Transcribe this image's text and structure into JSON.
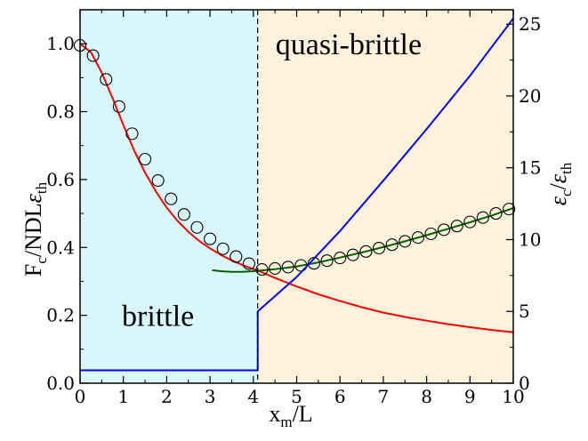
{
  "chart_data": {
    "type": "line",
    "xlabel_base": "x",
    "xlabel_sub": "m",
    "xlabel_tail": "/L",
    "ylabel_main": "F",
    "ylabel_main_sub": "c",
    "ylabel_main_mid": "/NDL",
    "ylabel_main_eps": "ε",
    "ylabel_main_eps_sub": "th",
    "ylabel_right_eps": "ε",
    "ylabel_right_sub": "c",
    "ylabel_right_mid": "/",
    "ylabel_right_eps2": "ε",
    "ylabel_right_sub2": "th",
    "xlim": [
      0,
      10
    ],
    "ylim_left": [
      0,
      1.1
    ],
    "ylim_right": [
      0,
      26
    ],
    "xticks": [
      0,
      1,
      2,
      3,
      4,
      5,
      6,
      7,
      8,
      9,
      10
    ],
    "xtick_labels": [
      "0",
      "1",
      "2",
      "3",
      "4",
      "5",
      "6",
      "7",
      "8",
      "9",
      "10"
    ],
    "yticks_left": [
      0,
      0.2,
      0.4,
      0.6,
      0.8,
      1.0
    ],
    "ytick_labels_left": [
      "0.0",
      "0.2",
      "0.4",
      "0.6",
      "0.8",
      "1.0"
    ],
    "yticks_right": [
      0,
      5,
      10,
      15,
      20,
      25
    ],
    "ytick_labels_right": [
      "0",
      "5",
      "10",
      "15",
      "20",
      "25"
    ],
    "grid": false,
    "regions": [
      {
        "label": "brittle",
        "x_from": 0,
        "x_to": 4.1,
        "color": "#d9f8fb",
        "label_x": 1.8,
        "label_y": 0.2
      },
      {
        "label": "quasi-brittle",
        "x_from": 4.1,
        "x_to": 10,
        "color": "#fdf3dc",
        "label_x": 6.2,
        "label_y": 1.0
      }
    ],
    "divider_x": 4.1,
    "series": [
      {
        "axis": "left",
        "color": "#ff0000",
        "style": "line",
        "x": [
          0,
          0.25,
          0.5,
          0.75,
          1,
          1.25,
          1.5,
          1.75,
          2,
          2.25,
          2.5,
          2.75,
          3,
          3.25,
          3.5,
          3.75,
          4,
          4.1,
          4.5,
          5,
          5.5,
          6,
          6.5,
          7,
          7.5,
          8,
          8.5,
          9,
          9.5,
          10
        ],
        "y": [
          1.0,
          0.975,
          0.915,
          0.84,
          0.76,
          0.685,
          0.62,
          0.565,
          0.517,
          0.478,
          0.446,
          0.419,
          0.397,
          0.378,
          0.362,
          0.348,
          0.336,
          0.332,
          0.31,
          0.285,
          0.262,
          0.242,
          0.224,
          0.208,
          0.195,
          0.184,
          0.174,
          0.165,
          0.157,
          0.15
        ]
      },
      {
        "axis": "left",
        "color": "#006400",
        "style": "line",
        "x": [
          3.05,
          3.25,
          3.5,
          3.75,
          4.0,
          4.1,
          4.5,
          5,
          5.5,
          6,
          6.5,
          7,
          7.5,
          8,
          8.5,
          9,
          9.5,
          10
        ],
        "y": [
          0.333,
          0.33,
          0.328,
          0.328,
          0.33,
          0.331,
          0.336,
          0.344,
          0.356,
          0.37,
          0.385,
          0.401,
          0.418,
          0.436,
          0.455,
          0.474,
          0.494,
          0.516
        ]
      },
      {
        "axis": "left",
        "color": "#000000",
        "style": "markers",
        "x": [
          0,
          0.3,
          0.6,
          0.9,
          1.2,
          1.5,
          1.8,
          2.1,
          2.4,
          2.7,
          3.0,
          3.3,
          3.6,
          3.9,
          4.2,
          4.5,
          4.8,
          5.1,
          5.4,
          5.7,
          6.0,
          6.3,
          6.6,
          6.9,
          7.2,
          7.5,
          7.8,
          8.1,
          8.4,
          8.7,
          9.0,
          9.3,
          9.6,
          9.9
        ],
        "y": [
          0.995,
          0.965,
          0.895,
          0.815,
          0.735,
          0.66,
          0.597,
          0.543,
          0.497,
          0.459,
          0.425,
          0.396,
          0.373,
          0.352,
          0.335,
          0.338,
          0.342,
          0.347,
          0.353,
          0.361,
          0.369,
          0.378,
          0.388,
          0.398,
          0.408,
          0.418,
          0.429,
          0.44,
          0.452,
          0.463,
          0.475,
          0.488,
          0.5,
          0.513
        ]
      },
      {
        "axis": "right",
        "color": "#0000ff",
        "style": "line",
        "x": [
          0,
          4.05,
          4.1,
          4.1,
          5,
          6,
          7,
          8,
          9,
          10
        ],
        "y": [
          0.9,
          0.9,
          0.9,
          5.0,
          7.4,
          10.6,
          14.1,
          17.7,
          21.4,
          25.4
        ]
      }
    ]
  }
}
